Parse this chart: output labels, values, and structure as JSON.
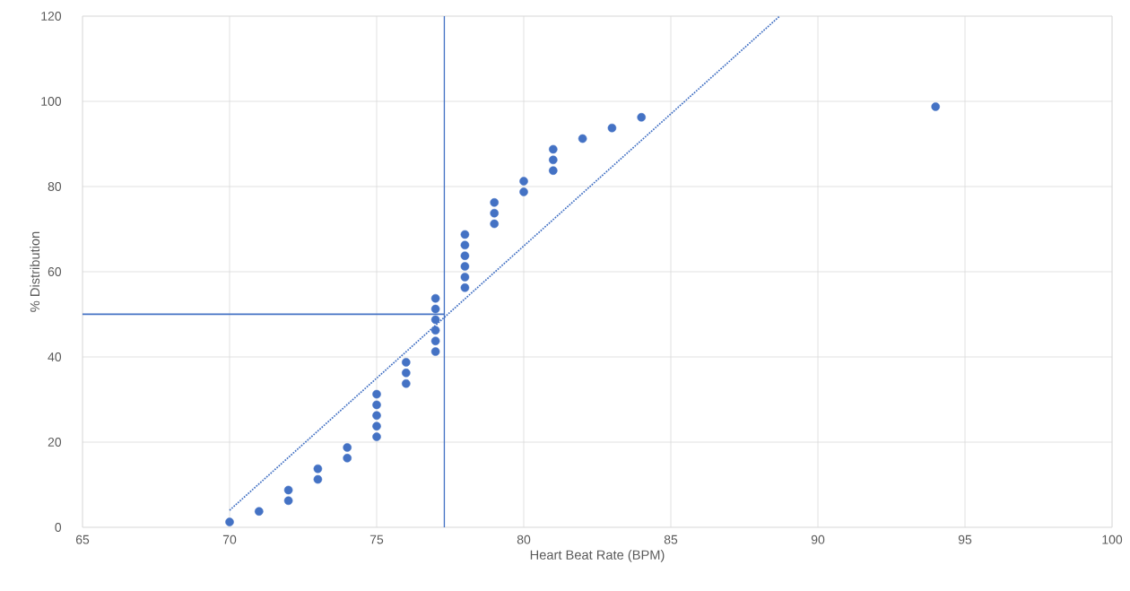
{
  "chart_data": {
    "type": "scatter",
    "xlabel": "Heart Beat Rate (BPM)",
    "ylabel": "% Distribution",
    "xlim": [
      65,
      100
    ],
    "ylim": [
      0,
      120
    ],
    "xticks": [
      65,
      70,
      75,
      80,
      85,
      90,
      95,
      100
    ],
    "yticks": [
      0,
      20,
      40,
      60,
      80,
      100,
      120
    ],
    "grid": true,
    "marker": "circle",
    "series": [
      {
        "color": "#4472c4",
        "x": [
          70,
          71,
          72,
          72,
          73,
          73,
          74,
          74,
          75,
          75,
          75,
          75,
          75,
          76,
          76,
          76,
          77,
          77,
          77,
          77,
          77,
          77,
          78,
          78,
          78,
          78,
          78,
          78,
          79,
          79,
          79,
          80,
          80,
          81,
          81,
          81,
          82,
          83,
          84,
          94
        ],
        "values": [
          1.25,
          3.75,
          6.25,
          8.75,
          11.25,
          13.75,
          16.25,
          18.75,
          21.25,
          23.75,
          26.25,
          28.75,
          31.25,
          33.75,
          36.25,
          38.75,
          41.25,
          43.75,
          46.25,
          48.75,
          51.25,
          53.75,
          56.25,
          58.75,
          61.25,
          63.75,
          66.25,
          68.75,
          71.25,
          73.75,
          76.25,
          78.75,
          81.25,
          83.75,
          86.25,
          88.75,
          91.25,
          93.75,
          96.25,
          98.75
        ]
      },
      {
        "type": "line",
        "color": "#4472c4",
        "marker": "none",
        "line_style": "dotted",
        "x": [
          70,
          88.7
        ],
        "values": [
          4,
          120
        ]
      },
      {
        "type": "line",
        "color": "#4472c4",
        "marker": "none",
        "line_style": "solid",
        "x": [
          65,
          77.3
        ],
        "values": [
          50,
          50
        ]
      }
    ],
    "ref_lines": [
      {
        "axis": "x",
        "value": 77.3,
        "color": "#4472c4"
      }
    ]
  }
}
